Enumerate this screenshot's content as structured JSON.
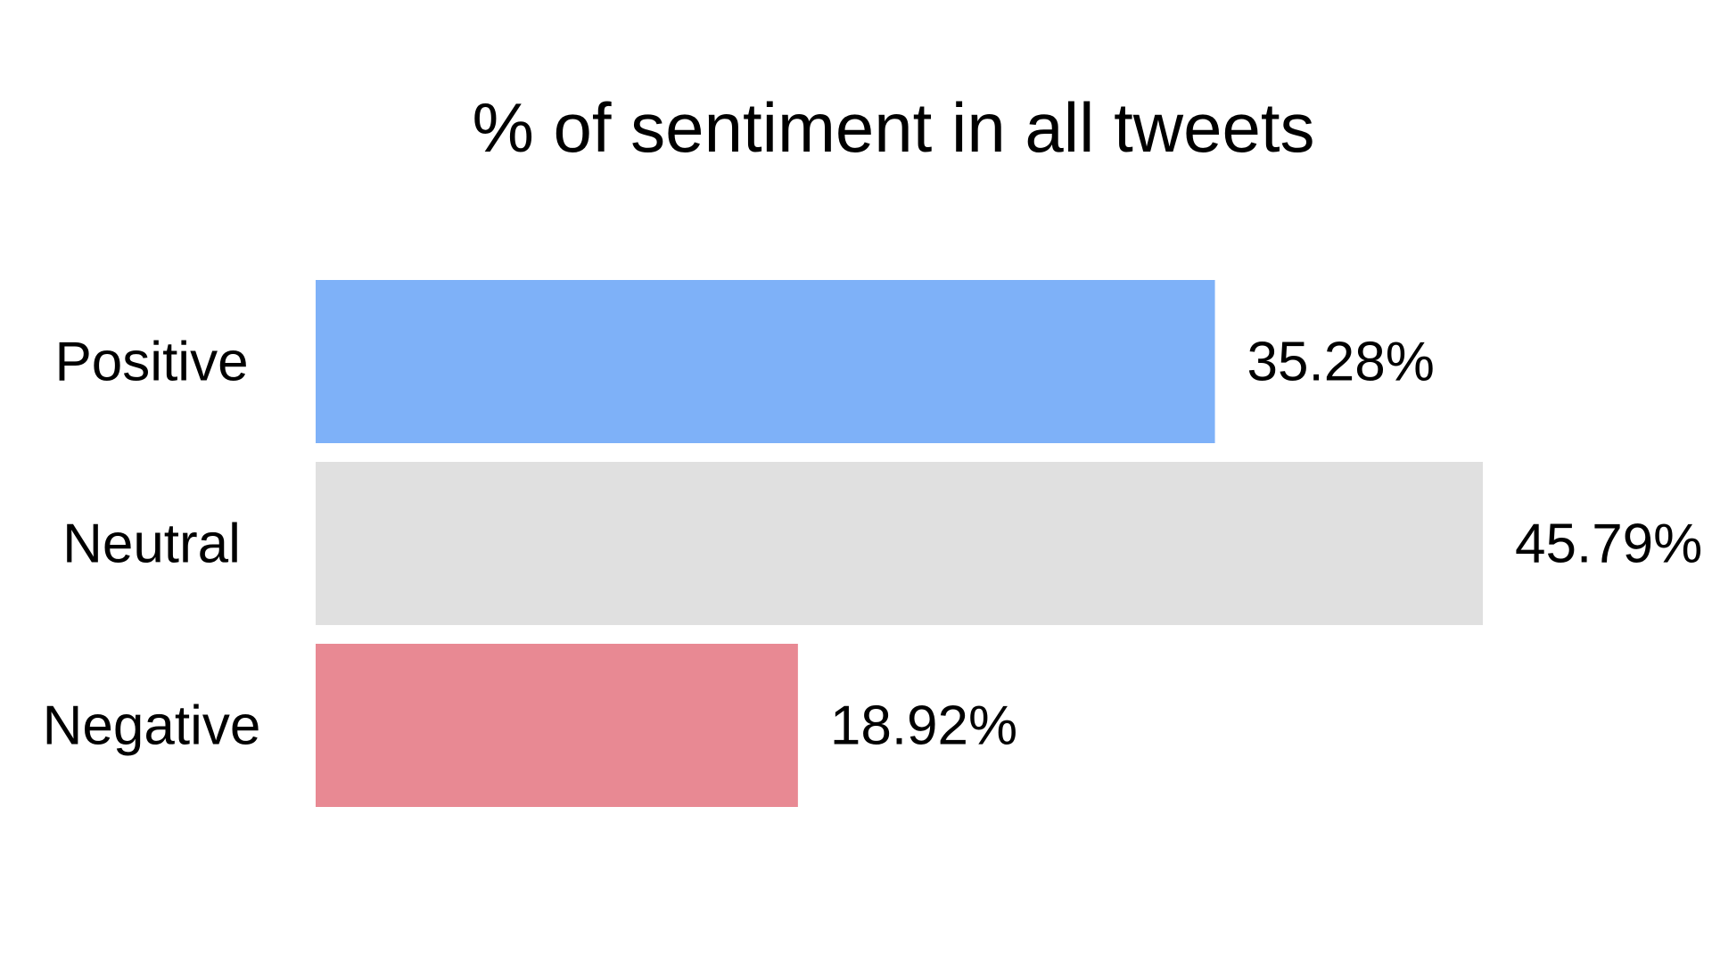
{
  "chart_data": {
    "type": "bar",
    "orientation": "horizontal",
    "title": "% of sentiment in all tweets",
    "xlabel": "",
    "ylabel": "",
    "categories": [
      "Positive",
      "Neutral",
      "Negative"
    ],
    "values": [
      35.28,
      45.79,
      18.92
    ],
    "value_labels": [
      "35.28%",
      "45.79%",
      "18.92%"
    ],
    "xlim": [
      0,
      45.79
    ],
    "grid": false,
    "legend": "none",
    "colors": [
      "#7EB1F8",
      "#E0E0E0",
      "#E88993"
    ]
  }
}
